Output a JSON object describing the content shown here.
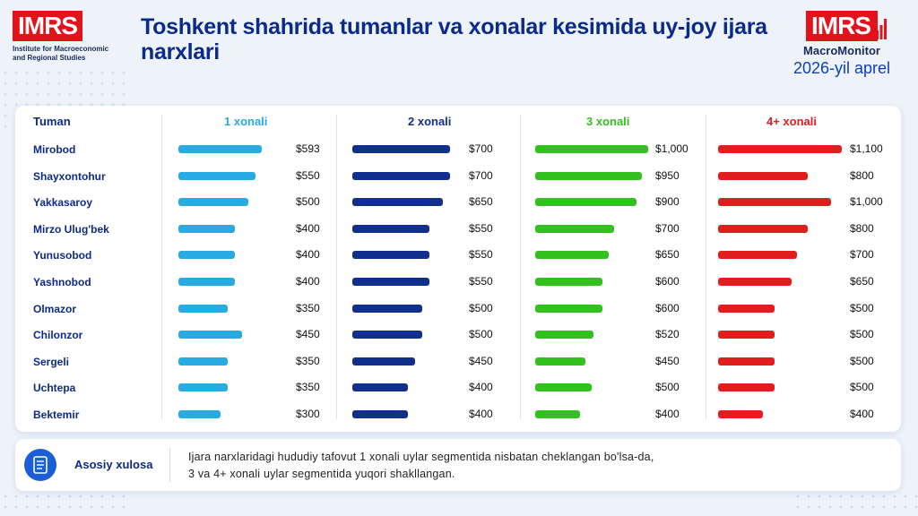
{
  "header": {
    "left_logo": "IMRS",
    "left_org_line1": "Institute for Macroeconomic",
    "left_org_line2": "and Regional Studies",
    "title": "Toshkent shahrida tumanlar va xonalar kesimida uy-joy ijara narxlari",
    "right_logo": "IMRS",
    "right_brand": "MacroMonitor",
    "period": "2026-yil aprel"
  },
  "colors": {
    "c1": "#28abe3",
    "c2": "#112f8c",
    "c3": "#33c11f",
    "c4": "#e11d1d",
    "title": "#0a2a8c"
  },
  "chart_data": {
    "type": "bar",
    "title": "Toshkent shahrida tumanlar va xonalar kesimida uy-joy ijara narxlari",
    "category_label": "Tuman",
    "categories": [
      "Mirobod",
      "Shayxontohur",
      "Yakkasaroy",
      "Mirzo Ulug'bek",
      "Yunusobod",
      "Yashnobod",
      "Olmazor",
      "Chilonzor",
      "Sergeli",
      "Uchtepa",
      "Bektemir"
    ],
    "series": [
      {
        "name": "1 xonali",
        "values": [
          593,
          550,
          500,
          400,
          400,
          400,
          350,
          450,
          350,
          350,
          300
        ],
        "labels": [
          "$593",
          "$550",
          "$500",
          "$400",
          "$400",
          "$400",
          "$350",
          "$450",
          "$350",
          "$350",
          "$300"
        ]
      },
      {
        "name": "2 xonali",
        "values": [
          700,
          700,
          650,
          550,
          550,
          550,
          500,
          500,
          450,
          400,
          400
        ],
        "labels": [
          "$700",
          "$700",
          "$650",
          "$550",
          "$550",
          "$550",
          "$500",
          "$500",
          "$450",
          "$400",
          "$400"
        ]
      },
      {
        "name": "3 xonali",
        "values": [
          1000,
          950,
          900,
          700,
          650,
          600,
          600,
          520,
          450,
          500,
          400
        ],
        "labels": [
          "$1,000",
          "$950",
          "$900",
          "$700",
          "$650",
          "$600",
          "$600",
          "$520",
          "$450",
          "$500",
          "$400"
        ]
      },
      {
        "name": "4+ xonali",
        "values": [
          1100,
          800,
          1000,
          800,
          700,
          650,
          500,
          500,
          500,
          500,
          400
        ],
        "labels": [
          "$1,100",
          "$800",
          "$1,000",
          "$800",
          "$700",
          "$650",
          "$500",
          "$500",
          "$500",
          "$500",
          "$400"
        ]
      }
    ]
  },
  "footer": {
    "label": "Asosiy xulosa",
    "text_line1": "Ijara narxlaridagi hududiy tafovut 1 xonali uylar segmentida nisbatan cheklangan bo'lsa-da,",
    "text_line2": "3 va 4+ xonali uylar segmentida yuqori shakllangan.",
    "icon": "document-icon"
  }
}
